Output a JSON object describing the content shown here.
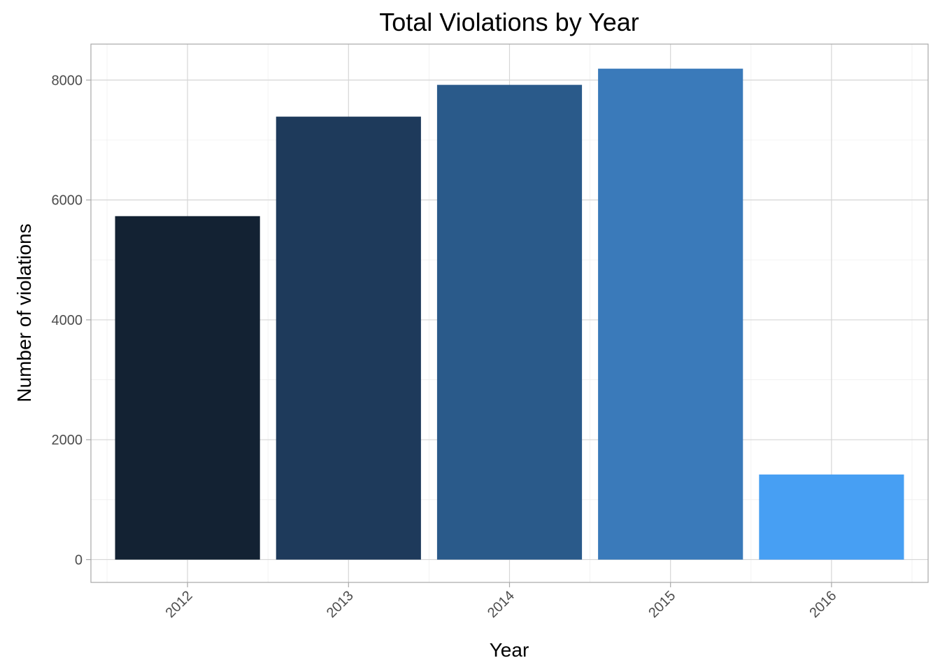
{
  "chart_data": {
    "type": "bar",
    "title": "Total Violations by Year",
    "xlabel": "Year",
    "ylabel": "Number of violations",
    "categories": [
      "2012",
      "2013",
      "2014",
      "2015",
      "2016"
    ],
    "values": [
      5730,
      7390,
      7920,
      8190,
      1420
    ],
    "colors": [
      "#132233",
      "#1e3a5b",
      "#2a5a8a",
      "#3a7aba",
      "#479ff3"
    ],
    "ylim": [
      -380,
      8600
    ],
    "yticks": [
      0,
      2000,
      4000,
      6000,
      8000
    ],
    "ytick_labels": [
      "0",
      "2000",
      "4000",
      "6000",
      "8000"
    ],
    "grid": true,
    "legend": "none"
  }
}
